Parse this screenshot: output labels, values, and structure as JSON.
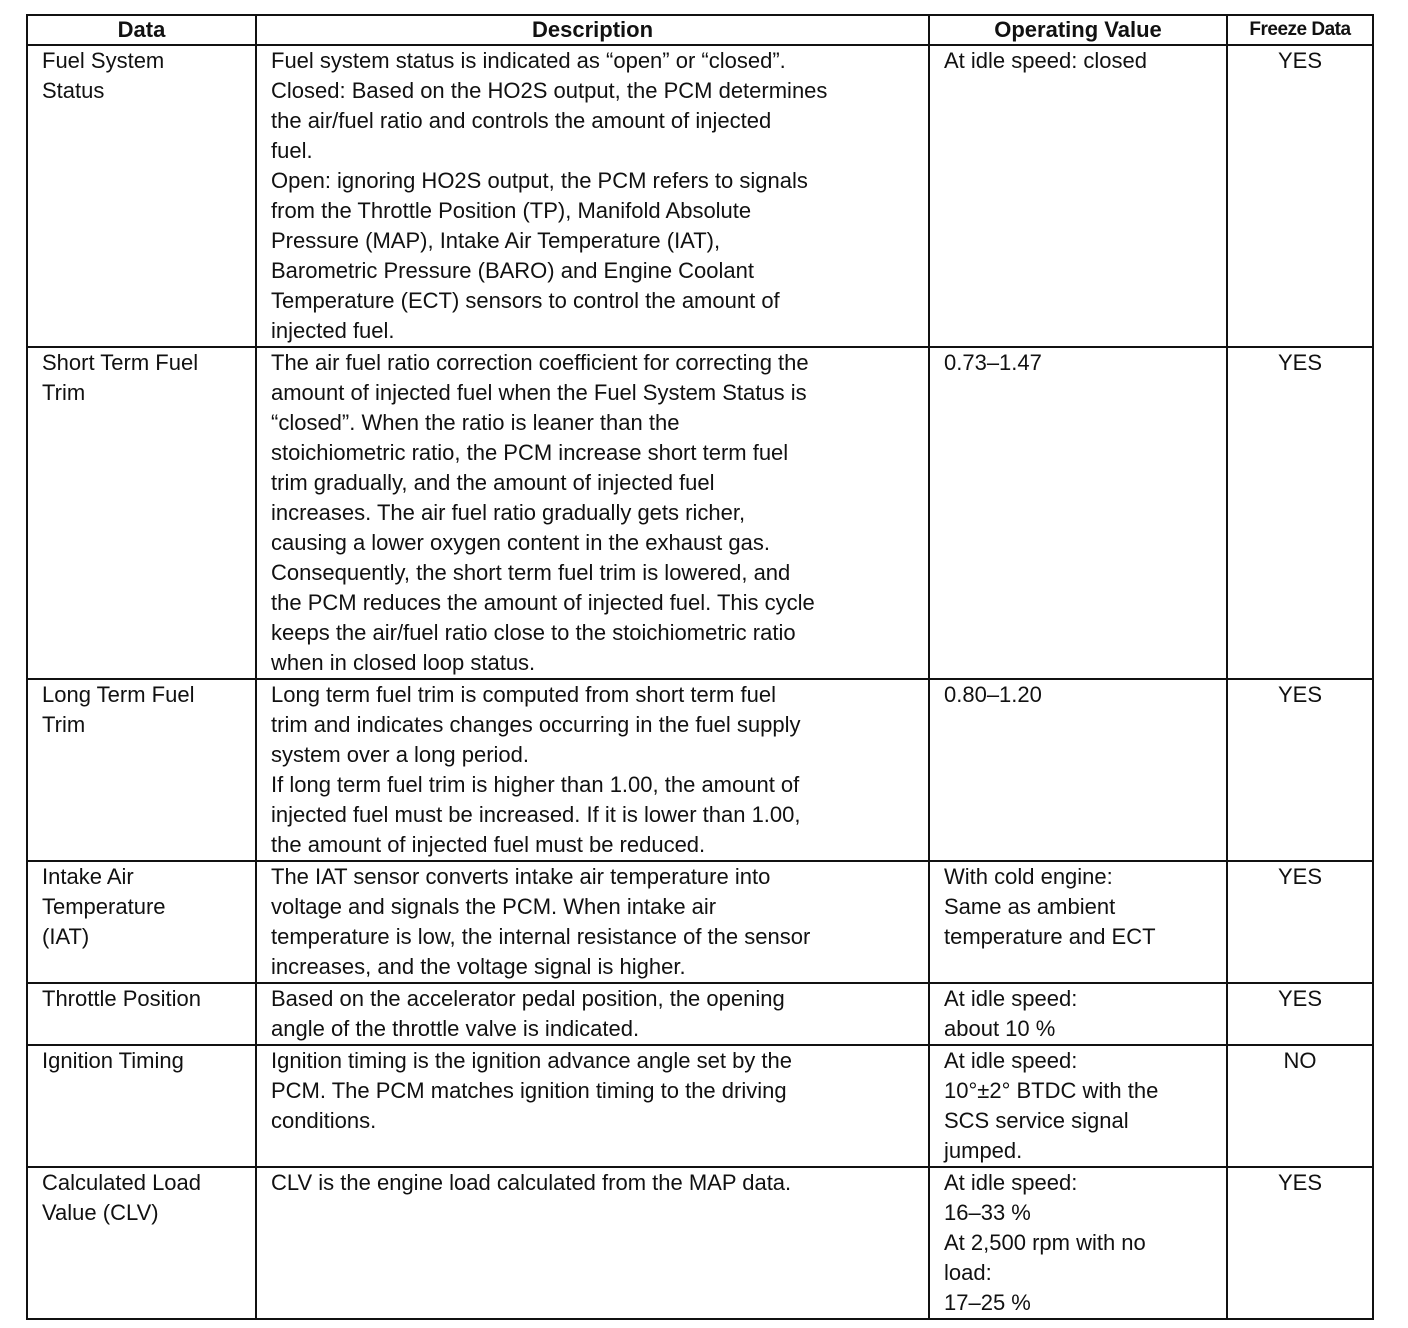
{
  "table": {
    "headers": [
      "Data",
      "Description",
      "Operating Value",
      "Freeze Data"
    ],
    "rows": [
      {
        "data": [
          "Fuel System",
          "Status"
        ],
        "description": [
          "Fuel system status is indicated as “open” or “closed”.",
          "Closed: Based on the HO2S output, the PCM determines",
          "the air/fuel ratio and controls the amount of injected",
          "fuel.",
          "Open: ignoring HO2S output, the PCM refers to signals",
          "from the Throttle Position (TP), Manifold Absolute",
          "Pressure (MAP), Intake Air Temperature (IAT),",
          "Barometric Pressure (BARO) and Engine Coolant",
          "Temperature (ECT) sensors to control the amount of",
          "injected fuel."
        ],
        "operating_value": [
          "At idle speed: closed"
        ],
        "freeze": "YES"
      },
      {
        "data": [
          "Short Term Fuel",
          "Trim"
        ],
        "description": [
          "The air fuel ratio correction coefficient for correcting the",
          "amount of injected fuel when the Fuel System Status is",
          "“closed”. When the ratio is leaner than the",
          "stoichiometric ratio, the PCM increase short term fuel",
          "trim gradually, and the amount of injected fuel",
          "increases. The air fuel ratio gradually gets richer,",
          "causing a lower oxygen content in the exhaust gas.",
          "Consequently, the short term fuel trim is lowered, and",
          "the PCM reduces the amount of injected fuel. This cycle",
          "keeps the air/fuel ratio close to the stoichiometric ratio",
          "when in closed loop status."
        ],
        "operating_value": [
          "0.73–1.47"
        ],
        "freeze": "YES"
      },
      {
        "data": [
          "Long Term Fuel",
          "Trim"
        ],
        "description": [
          "Long term fuel trim is computed from short term fuel",
          "trim and indicates changes occurring in the fuel supply",
          "system over a long period.",
          "If long term fuel trim is higher than 1.00, the amount of",
          "injected fuel must be increased. If it is lower than 1.00,",
          "the amount of injected fuel must be reduced."
        ],
        "operating_value": [
          "0.80–1.20"
        ],
        "freeze": "YES"
      },
      {
        "data": [
          "Intake Air",
          "Temperature",
          "(IAT)"
        ],
        "description": [
          "The IAT sensor converts intake air temperature into",
          "voltage and signals the PCM. When intake air",
          "temperature is low, the internal resistance of the sensor",
          "increases, and the voltage signal is higher."
        ],
        "operating_value": [
          "With cold engine:",
          "Same as ambient",
          "temperature and ECT"
        ],
        "freeze": "YES"
      },
      {
        "data": [
          "Throttle Position"
        ],
        "description": [
          "Based on the accelerator pedal position, the opening",
          "angle of the throttle valve is indicated."
        ],
        "operating_value": [
          "At idle speed:",
          "about 10 %"
        ],
        "freeze": "YES"
      },
      {
        "data": [
          "Ignition Timing"
        ],
        "description": [
          "Ignition timing is the ignition advance angle set by the",
          "PCM. The PCM matches ignition timing to the driving",
          "conditions."
        ],
        "operating_value": [
          "At idle speed:",
          "10°±2° BTDC with the",
          "SCS service signal",
          "jumped."
        ],
        "freeze": "NO"
      },
      {
        "data": [
          "Calculated Load",
          "Value (CLV)"
        ],
        "description": [
          "CLV is the engine load calculated from the MAP data."
        ],
        "operating_value": [
          "At idle speed:",
          "16–33 %",
          "At 2,500 rpm with no",
          "load:",
          "17–25 %"
        ],
        "freeze": "YES"
      }
    ]
  }
}
